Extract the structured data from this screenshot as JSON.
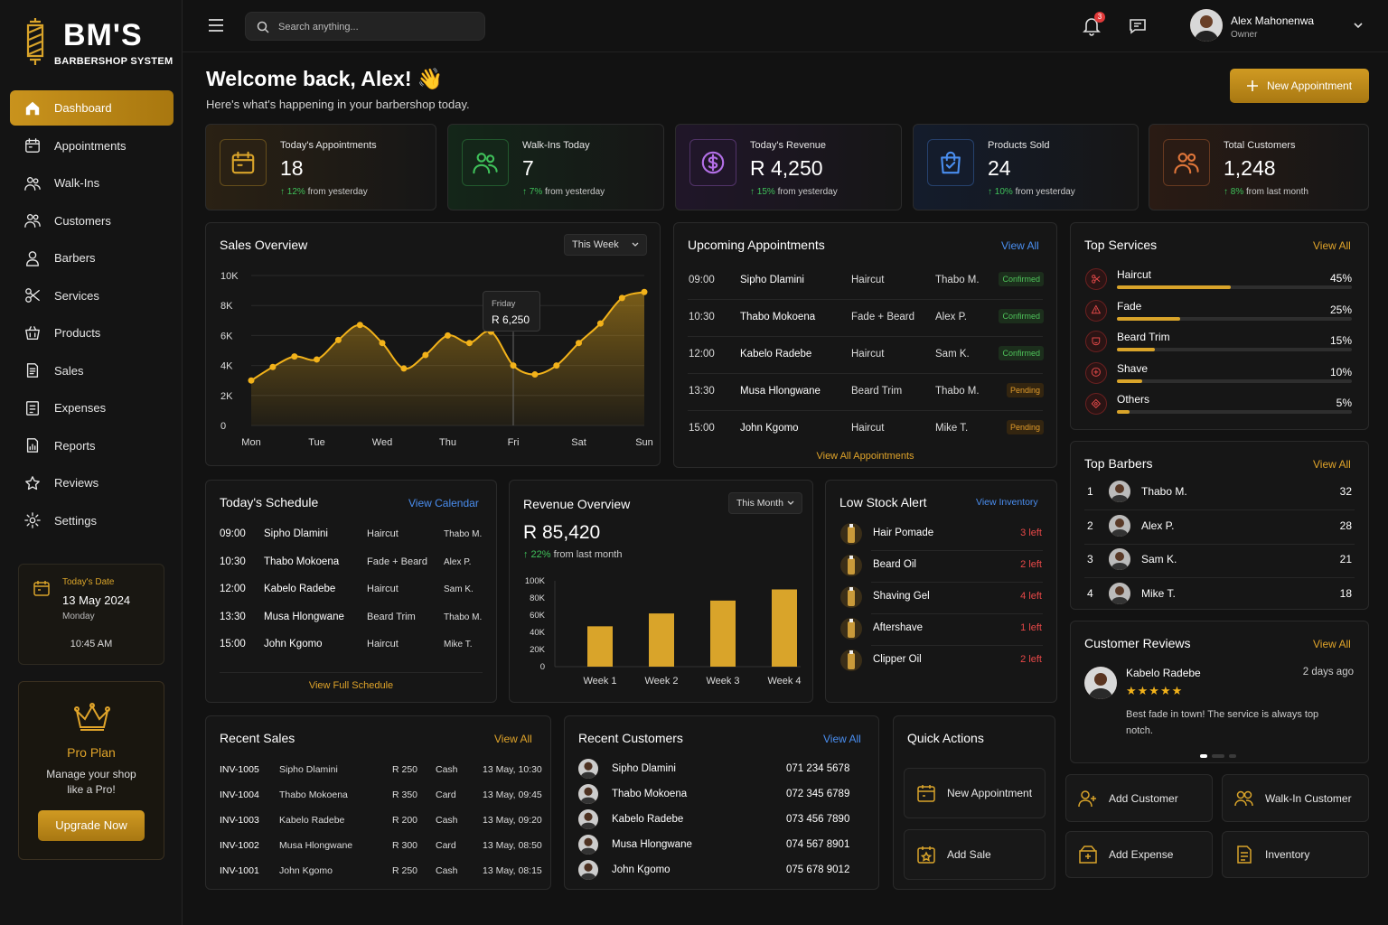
{
  "brand": {
    "name": "BM'S",
    "tagline": "BARBERSHOP SYSTEM"
  },
  "nav": [
    {
      "label": "Dashboard",
      "icon": "home-icon",
      "active": true
    },
    {
      "label": "Appointments",
      "icon": "calendar-icon"
    },
    {
      "label": "Walk-Ins",
      "icon": "walk-in-icon"
    },
    {
      "label": "Customers",
      "icon": "customers-icon"
    },
    {
      "label": "Barbers",
      "icon": "barber-icon"
    },
    {
      "label": "Services",
      "icon": "scissors-icon"
    },
    {
      "label": "Products",
      "icon": "basket-icon"
    },
    {
      "label": "Sales",
      "icon": "receipt-icon"
    },
    {
      "label": "Expenses",
      "icon": "expense-icon"
    },
    {
      "label": "Reports",
      "icon": "report-icon"
    },
    {
      "label": "Reviews",
      "icon": "star-icon"
    },
    {
      "label": "Settings",
      "icon": "gear-icon"
    }
  ],
  "date_card": {
    "label": "Today's Date",
    "date": "13 May 2024",
    "day": "Monday",
    "time": "10:45 AM"
  },
  "pro_card": {
    "title": "Pro Plan",
    "desc": "Manage your shop like a Pro!",
    "button": "Upgrade Now"
  },
  "topbar": {
    "search_placeholder": "Search anything...",
    "notifications": "3",
    "user_name": "Alex Mahonenwa",
    "user_role": "Owner"
  },
  "header": {
    "welcome": "Welcome back, Alex! 👋",
    "subtitle": "Here's what's happening in your barbershop today.",
    "new_appointment": "New Appointment"
  },
  "kpis": [
    {
      "label": "Today's Appointments",
      "value": "18",
      "change": "↑ 12%",
      "suffix": " from yesterday",
      "color": "#d9a42a",
      "bg": "#2a2114",
      "icon": "calendar-icon"
    },
    {
      "label": "Walk-Ins Today",
      "value": "7",
      "change": "↑ 7%",
      "suffix": " from yesterday",
      "color": "#3fc15a",
      "bg": "#142619",
      "icon": "walk-in-icon"
    },
    {
      "label": "Today's Revenue",
      "value": "R 4,250",
      "change": "↑ 15%",
      "suffix": " from yesterday",
      "color": "#b470e8",
      "bg": "#201629",
      "icon": "dollar-icon"
    },
    {
      "label": "Products Sold",
      "value": "24",
      "change": "↑ 10%",
      "suffix": " from yesterday",
      "color": "#4a8ef0",
      "bg": "#141c2c",
      "icon": "shopping-bag-icon"
    },
    {
      "label": "Total Customers",
      "value": "1,248",
      "change": "↑ 8%",
      "suffix": " from last month",
      "color": "#e0763a",
      "bg": "#2a1b14",
      "icon": "customers-icon"
    }
  ],
  "sales_overview": {
    "title": "Sales Overview",
    "filter": "This Week",
    "tooltip_day": "Friday",
    "tooltip_value": "R 6,250"
  },
  "chart_data": [
    {
      "type": "area",
      "title": "Sales Overview",
      "categories": [
        "Mon",
        "Tue",
        "Wed",
        "Thu",
        "Fri",
        "Sat",
        "Sun"
      ],
      "x": [
        0,
        0.33,
        0.66,
        1,
        1.33,
        1.66,
        2,
        2.33,
        2.66,
        3,
        3.33,
        3.66,
        4,
        4.33,
        4.66,
        5,
        5.33,
        5.66,
        6
      ],
      "values": [
        3000,
        3900,
        4600,
        4400,
        5700,
        6700,
        5500,
        3800,
        4700,
        6000,
        5500,
        6250,
        4000,
        3400,
        4000,
        5500,
        6800,
        8500,
        8900
      ],
      "ylim": [
        0,
        10000
      ],
      "yticks": [
        "10K",
        "8K",
        "6K",
        "4K",
        "2K",
        "0"
      ],
      "grid": true,
      "color": "#f2b21a"
    },
    {
      "type": "bar",
      "title": "Revenue Overview",
      "categories": [
        "Week 1",
        "Week 2",
        "Week 3",
        "Week 4"
      ],
      "values": [
        47000,
        62000,
        77000,
        90000
      ],
      "ylim": [
        0,
        100000
      ],
      "yticks": [
        "100K",
        "80K",
        "60K",
        "40K",
        "20K",
        "0"
      ],
      "color": "#d9a42a"
    }
  ],
  "upcoming": {
    "title": "Upcoming Appointments",
    "link": "View All",
    "footer": "View All Appointments",
    "rows": [
      {
        "time": "09:00",
        "name": "Sipho Dlamini",
        "service": "Haircut",
        "barber": "Thabo M.",
        "status": "Confirmed"
      },
      {
        "time": "10:30",
        "name": "Thabo Mokoena",
        "service": "Fade + Beard",
        "barber": "Alex P.",
        "status": "Confirmed"
      },
      {
        "time": "12:00",
        "name": "Kabelo Radebe",
        "service": "Haircut",
        "barber": "Sam K.",
        "status": "Confirmed"
      },
      {
        "time": "13:30",
        "name": "Musa Hlongwane",
        "service": "Beard Trim",
        "barber": "Thabo M.",
        "status": "Pending"
      },
      {
        "time": "15:00",
        "name": "John Kgomo",
        "service": "Haircut",
        "barber": "Mike T.",
        "status": "Pending"
      }
    ]
  },
  "top_services": {
    "title": "Top Services",
    "link": "View All",
    "items": [
      {
        "name": "Haircut",
        "pct": "45%",
        "value": 45,
        "icon": "haircut-icon"
      },
      {
        "name": "Fade",
        "pct": "25%",
        "value": 25,
        "icon": "fade-icon"
      },
      {
        "name": "Beard Trim",
        "pct": "15%",
        "value": 15,
        "icon": "beard-icon"
      },
      {
        "name": "Shave",
        "pct": "10%",
        "value": 10,
        "icon": "razor-icon"
      },
      {
        "name": "Others",
        "pct": "5%",
        "value": 5,
        "icon": "others-icon"
      }
    ]
  },
  "schedule": {
    "title": "Today's Schedule",
    "link": "View Calendar",
    "footer": "View Full Schedule",
    "rows": [
      {
        "time": "09:00",
        "name": "Sipho Dlamini",
        "service": "Haircut",
        "barber": "Thabo M."
      },
      {
        "time": "10:30",
        "name": "Thabo Mokoena",
        "service": "Fade + Beard",
        "barber": "Alex P."
      },
      {
        "time": "12:00",
        "name": "Kabelo Radebe",
        "service": "Haircut",
        "barber": "Sam K."
      },
      {
        "time": "13:30",
        "name": "Musa Hlongwane",
        "service": "Beard Trim",
        "barber": "Thabo M."
      },
      {
        "time": "15:00",
        "name": "John Kgomo",
        "service": "Haircut",
        "barber": "Mike T."
      }
    ]
  },
  "revenue": {
    "title": "Revenue Overview",
    "filter": "This Month",
    "value": "R 85,420",
    "change": "↑ 22%",
    "suffix": " from last month"
  },
  "low_stock": {
    "title": "Low Stock Alert",
    "link": "View Inventory",
    "items": [
      {
        "name": "Hair Pomade",
        "left": "3 left"
      },
      {
        "name": "Beard Oil",
        "left": "2 left"
      },
      {
        "name": "Shaving Gel",
        "left": "4 left"
      },
      {
        "name": "Aftershave",
        "left": "1 left"
      },
      {
        "name": "Clipper Oil",
        "left": "2 left"
      }
    ]
  },
  "top_barbers": {
    "title": "Top Barbers",
    "link": "View All",
    "items": [
      {
        "rank": "1",
        "name": "Thabo M.",
        "count": "32"
      },
      {
        "rank": "2",
        "name": "Alex P.",
        "count": "28"
      },
      {
        "rank": "3",
        "name": "Sam K.",
        "count": "21"
      },
      {
        "rank": "4",
        "name": "Mike T.",
        "count": "18"
      }
    ]
  },
  "reviews": {
    "title": "Customer Reviews",
    "link": "View All",
    "name": "Kabelo Radebe",
    "ago": "2 days ago",
    "stars": "★★★★★",
    "text": "Best fade in town! The service is always top notch."
  },
  "recent_sales": {
    "title": "Recent Sales",
    "link": "View All",
    "rows": [
      {
        "inv": "INV-1005",
        "name": "Sipho Dlamini",
        "amount": "R 250",
        "method": "Cash",
        "date": "13 May, 10:30"
      },
      {
        "inv": "INV-1004",
        "name": "Thabo Mokoena",
        "amount": "R 350",
        "method": "Card",
        "date": "13 May, 09:45"
      },
      {
        "inv": "INV-1003",
        "name": "Kabelo Radebe",
        "amount": "R 200",
        "method": "Cash",
        "date": "13 May, 09:20"
      },
      {
        "inv": "INV-1002",
        "name": "Musa Hlongwane",
        "amount": "R 300",
        "method": "Card",
        "date": "13 May, 08:50"
      },
      {
        "inv": "INV-1001",
        "name": "John Kgomo",
        "amount": "R 250",
        "method": "Cash",
        "date": "13 May, 08:15"
      }
    ]
  },
  "recent_customers": {
    "title": "Recent Customers",
    "link": "View All",
    "rows": [
      {
        "name": "Sipho Dlamini",
        "phone": "071 234 5678"
      },
      {
        "name": "Thabo Mokoena",
        "phone": "072 345 6789"
      },
      {
        "name": "Kabelo Radebe",
        "phone": "073 456 7890"
      },
      {
        "name": "Musa Hlongwane",
        "phone": "074 567 8901"
      },
      {
        "name": "John Kgomo",
        "phone": "075 678 9012"
      }
    ]
  },
  "quick_actions": {
    "title": "Quick Actions",
    "new_appointment": "New Appointment",
    "add_sale": "Add Sale"
  },
  "side_actions": {
    "add_customer": "Add Customer",
    "walk_in": "Walk-In Customer",
    "add_expense": "Add Expense",
    "inventory": "Inventory"
  }
}
